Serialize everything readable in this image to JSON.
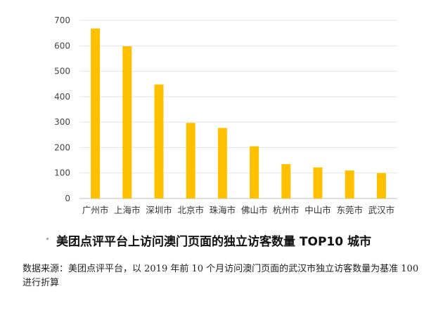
{
  "chart_data": {
    "type": "bar",
    "categories": [
      "广州市",
      "上海市",
      "深圳市",
      "北京市",
      "珠海市",
      "佛山市",
      "杭州市",
      "中山市",
      "东莞市",
      "武汉市"
    ],
    "values": [
      668,
      598,
      448,
      297,
      277,
      205,
      135,
      122,
      110,
      100
    ],
    "yticks": [
      0,
      100,
      200,
      300,
      400,
      500,
      600,
      700
    ],
    "ylim": [
      0,
      700
    ],
    "bar_color": "#FFC000",
    "grid": true,
    "legend": "none"
  },
  "caption": {
    "title": "美团点评平台上访问澳门页面的独立访客数量 TOP10 城市",
    "source": "数据来源：美团点评平台，以 2019 年前 10 个月访问澳门页面的武汉市独立访客数量为基准 100 进行折算"
  }
}
